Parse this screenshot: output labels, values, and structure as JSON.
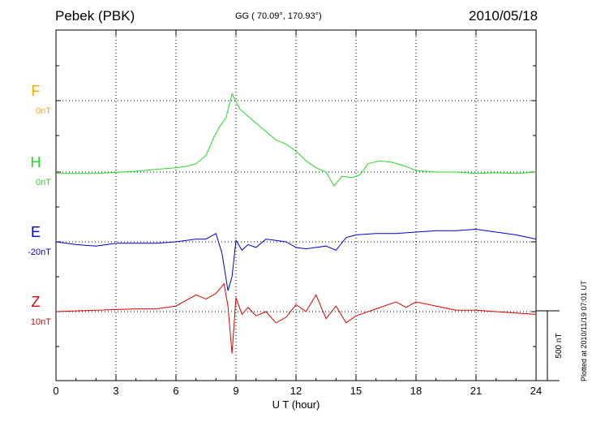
{
  "header": {
    "station": "Pebek (PBK)",
    "coords": "GG ( 70.09°, 170.93°)",
    "date": "2010/05/18"
  },
  "footer": {
    "plotted": "Plotted at 2010/11/19 07:01  UT"
  },
  "chart_data": {
    "type": "line",
    "title": "Pebek (PBK)",
    "xlabel": "U T (hour)",
    "ylabel": "",
    "xlim": [
      0,
      24
    ],
    "x_ticks": [
      0,
      3,
      6,
      9,
      12,
      15,
      18,
      21,
      24
    ],
    "scale_bar_label": "500 nT",
    "scale_bar_nT": 500,
    "series": [
      {
        "name": "F",
        "offset_label": "0nT",
        "color": "#ffa500",
        "x": [],
        "values": []
      },
      {
        "name": "H",
        "offset_label": "0nT",
        "color": "#22dd22",
        "x": [
          0,
          2,
          4,
          5,
          6,
          6.5,
          7,
          7.5,
          7.9,
          8.2,
          8.5,
          8.8,
          9.2,
          9.6,
          10,
          10.5,
          11,
          11.5,
          12,
          12.5,
          13,
          13.5,
          13.9,
          14.3,
          14.8,
          15.2,
          15.6,
          16.2,
          16.8,
          17.5,
          18,
          19,
          20,
          21,
          22,
          23,
          24
        ],
        "values": [
          -10,
          -10,
          5,
          20,
          30,
          40,
          60,
          120,
          250,
          330,
          390,
          560,
          450,
          400,
          350,
          290,
          230,
          200,
          150,
          80,
          30,
          0,
          -100,
          -30,
          -40,
          -20,
          60,
          80,
          70,
          40,
          10,
          0,
          0,
          -10,
          -5,
          -10,
          0
        ]
      },
      {
        "name": "E",
        "offset_label": "-20nT",
        "color": "#0000cc",
        "x": [
          0,
          1,
          2,
          3,
          4,
          5,
          6,
          7,
          7.5,
          8,
          8.3,
          8.6,
          8.8,
          9,
          9.3,
          9.6,
          10,
          10.5,
          11,
          11.5,
          12,
          12.5,
          13,
          13.5,
          14,
          14.5,
          15,
          16,
          17,
          18,
          19,
          20,
          21,
          22,
          23,
          24
        ],
        "values": [
          0,
          -20,
          -30,
          -10,
          -10,
          -10,
          0,
          20,
          20,
          60,
          -80,
          -350,
          -250,
          10,
          -60,
          -20,
          -40,
          20,
          10,
          0,
          -40,
          -50,
          -40,
          -30,
          -60,
          30,
          50,
          60,
          60,
          70,
          80,
          80,
          90,
          70,
          50,
          20
        ]
      },
      {
        "name": "Z",
        "offset_label": "10nT",
        "color": "#dd0000",
        "x": [
          0,
          2,
          4,
          5,
          6,
          6.5,
          7,
          7.5,
          8,
          8.4,
          8.6,
          8.8,
          9,
          9.3,
          9.6,
          10,
          10.5,
          11,
          11.5,
          12,
          12.5,
          13,
          13.5,
          14,
          14.5,
          15,
          16,
          17,
          17.5,
          18,
          19,
          20,
          21,
          22,
          23,
          24
        ],
        "values": [
          0,
          10,
          20,
          20,
          40,
          80,
          120,
          90,
          130,
          200,
          40,
          -300,
          100,
          -20,
          30,
          -30,
          0,
          -80,
          -40,
          50,
          0,
          120,
          -50,
          40,
          -80,
          -30,
          20,
          70,
          30,
          70,
          40,
          10,
          10,
          0,
          -10,
          -20
        ]
      }
    ]
  }
}
